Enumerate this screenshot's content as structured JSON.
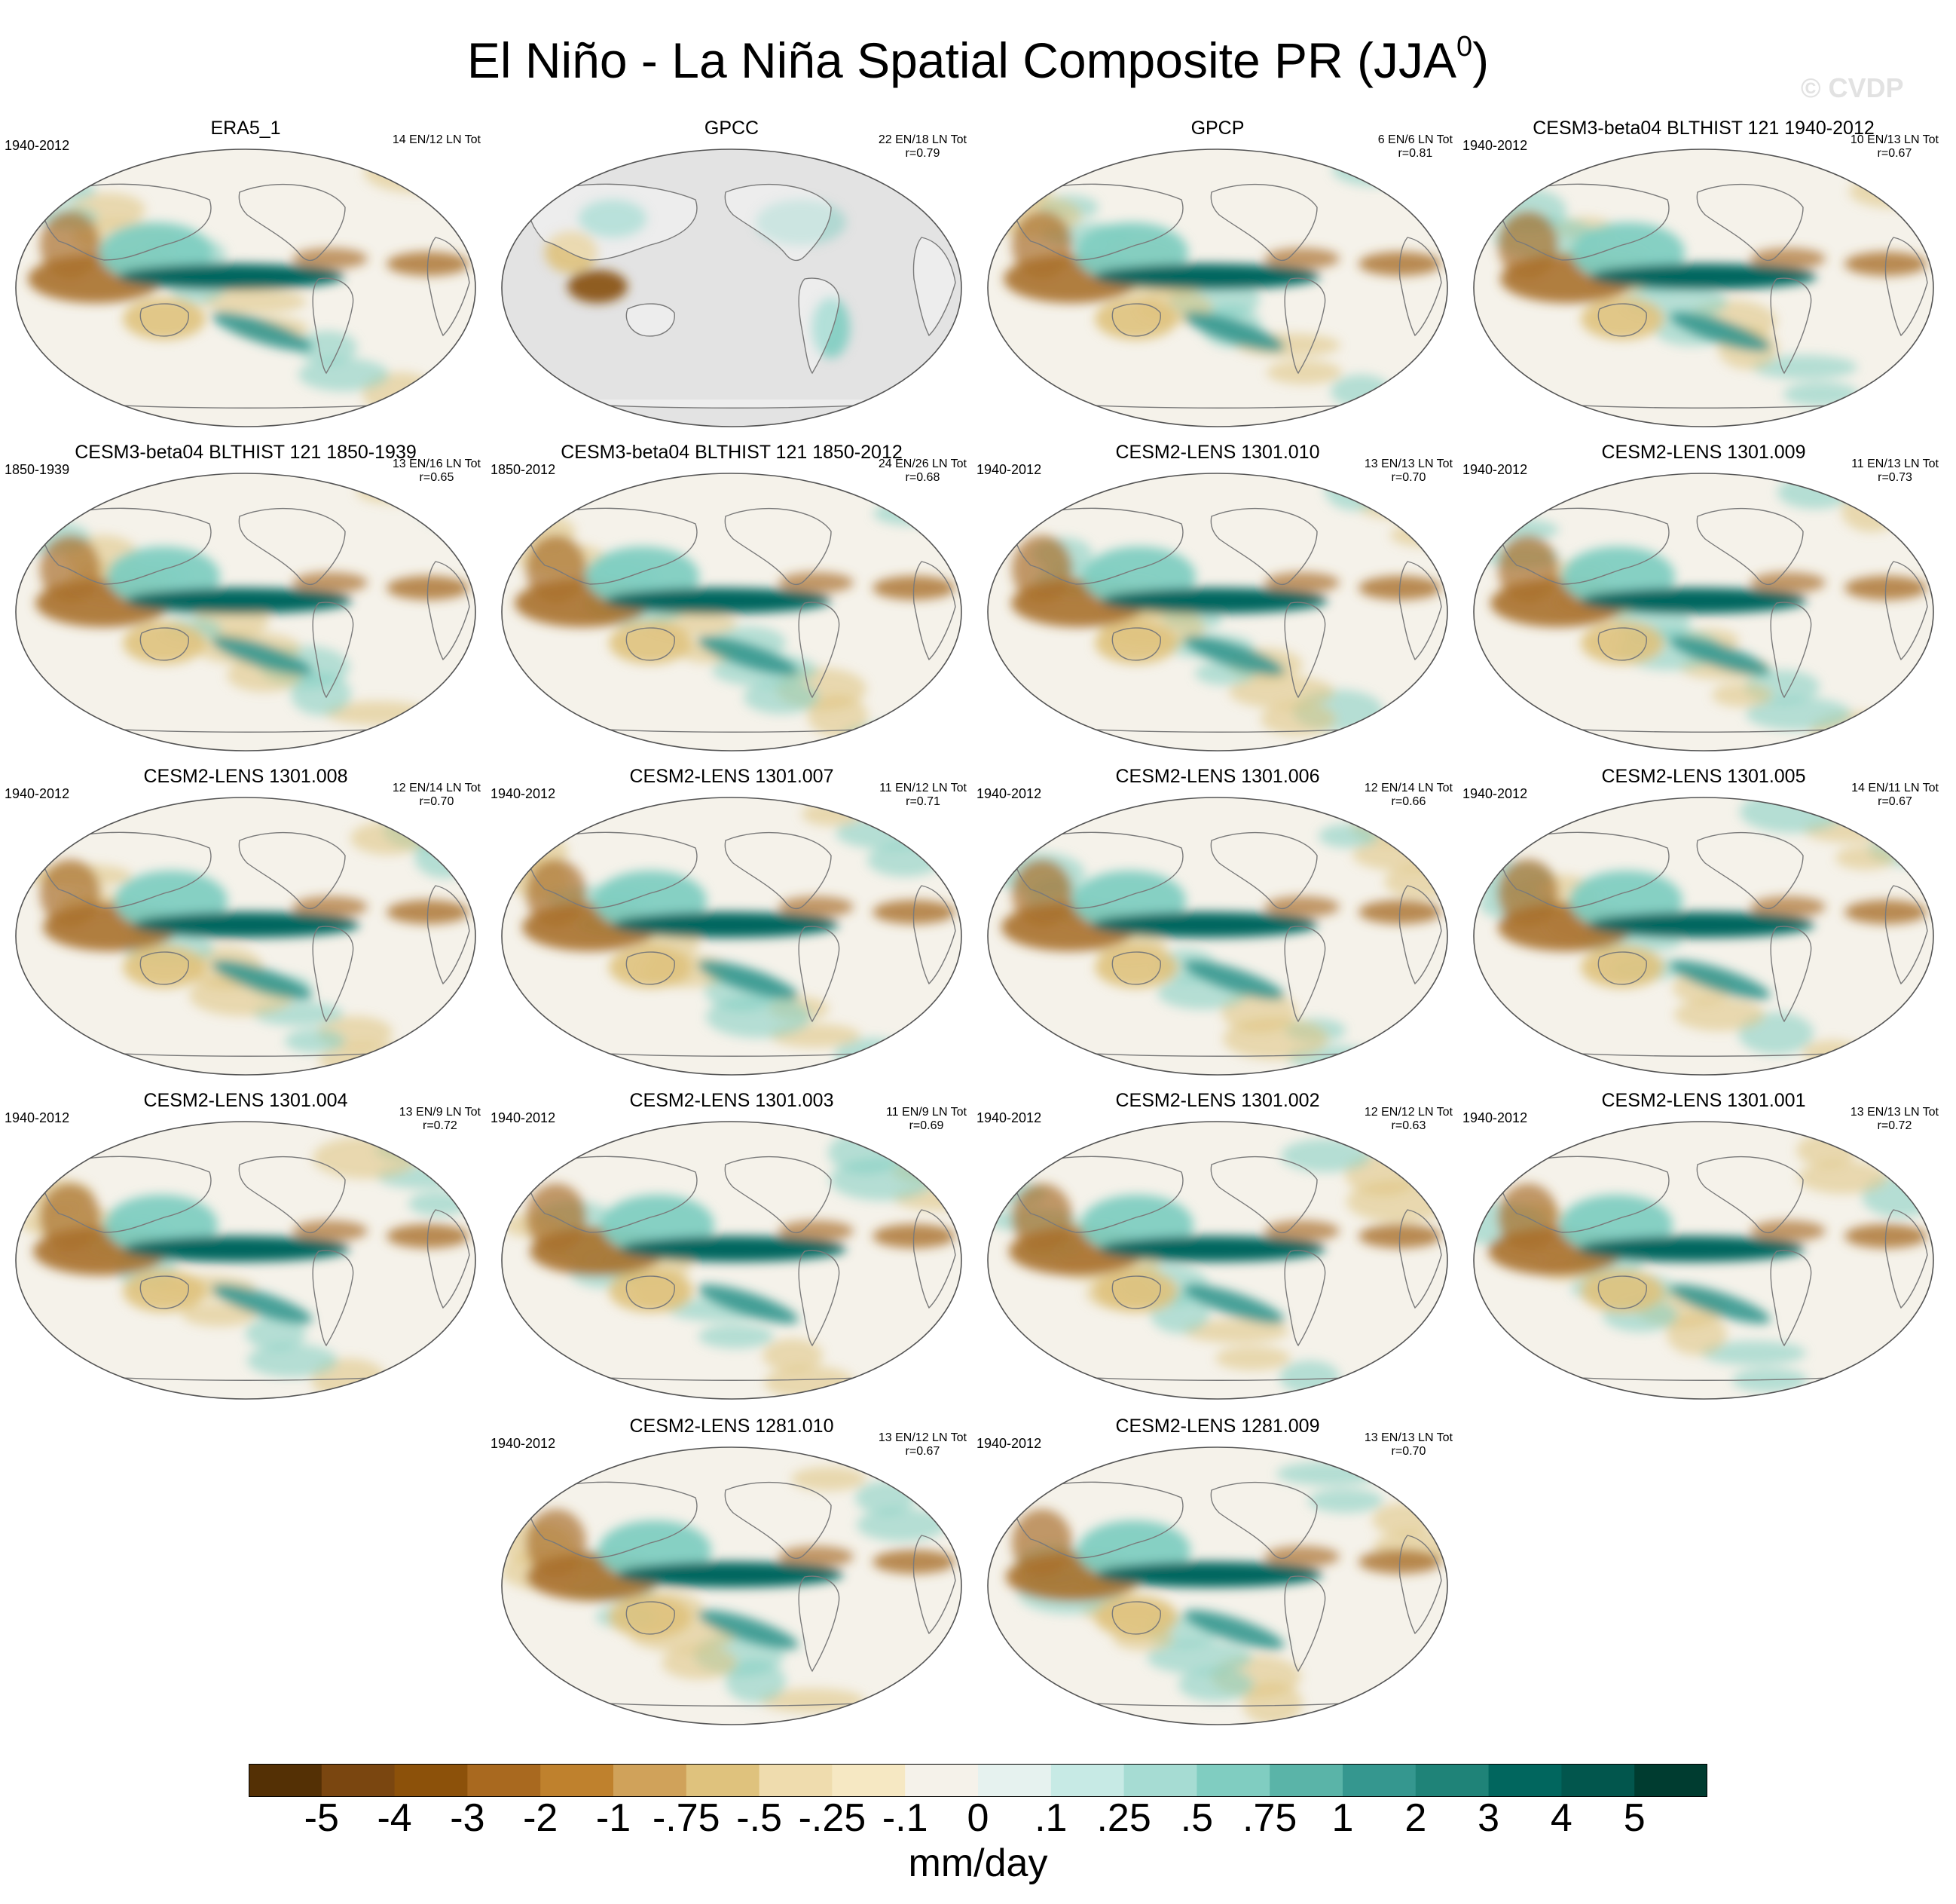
{
  "figure": {
    "title_main": "El Niño - La Niña Spatial Composite PR (JJA",
    "title_sup": "0",
    "title_close": ")",
    "watermark": "© CVDP"
  },
  "panels": [
    {
      "title": "ERA5_1",
      "years": "1940-2012",
      "stats": "14 EN/12 LN Tot",
      "r": "",
      "land_only": false,
      "dry_color": "#a9712c"
    },
    {
      "title": "GPCC",
      "years": "",
      "stats": "22 EN/18 LN Tot",
      "r": "r=0.79",
      "land_only": true,
      "dry_color": "#8a5419"
    },
    {
      "title": "GPCP",
      "years": "",
      "stats": "6 EN/6 LN Tot",
      "r": "r=0.81",
      "land_only": false,
      "dry_color": "#a9712c"
    },
    {
      "title": "CESM3-beta04 BLTHIST 121 1940-2012",
      "years": "1940-2012",
      "stats": "10 EN/13 LN Tot",
      "r": "r=0.67",
      "land_only": false,
      "dry_color": "#a9712c"
    },
    {
      "title": "CESM3-beta04 BLTHIST 121 1850-1939",
      "years": "1850-1939",
      "stats": "13 EN/16 LN Tot",
      "r": "r=0.65",
      "land_only": false,
      "dry_color": "#a9712c"
    },
    {
      "title": "CESM3-beta04 BLTHIST 121 1850-2012",
      "years": "1850-2012",
      "stats": "24 EN/26 LN Tot",
      "r": "r=0.68",
      "land_only": false,
      "dry_color": "#a9712c"
    },
    {
      "title": "CESM2-LENS 1301.010",
      "years": "1940-2012",
      "stats": "13 EN/13 LN Tot",
      "r": "r=0.70",
      "land_only": false,
      "dry_color": "#a9712c"
    },
    {
      "title": "CESM2-LENS 1301.009",
      "years": "1940-2012",
      "stats": "11 EN/13 LN Tot",
      "r": "r=0.73",
      "land_only": false,
      "dry_color": "#a9712c"
    },
    {
      "title": "CESM2-LENS 1301.008",
      "years": "1940-2012",
      "stats": "12 EN/14 LN Tot",
      "r": "r=0.70",
      "land_only": false,
      "dry_color": "#a9712c"
    },
    {
      "title": "CESM2-LENS 1301.007",
      "years": "1940-2012",
      "stats": "11 EN/12 LN Tot",
      "r": "r=0.71",
      "land_only": false,
      "dry_color": "#a9712c"
    },
    {
      "title": "CESM2-LENS 1301.006",
      "years": "1940-2012",
      "stats": "12 EN/14 LN Tot",
      "r": "r=0.66",
      "land_only": false,
      "dry_color": "#a9712c"
    },
    {
      "title": "CESM2-LENS 1301.005",
      "years": "1940-2012",
      "stats": "14 EN/11 LN Tot",
      "r": "r=0.67",
      "land_only": false,
      "dry_color": "#a9712c"
    },
    {
      "title": "CESM2-LENS 1301.004",
      "years": "1940-2012",
      "stats": "13 EN/9 LN Tot",
      "r": "r=0.72",
      "land_only": false,
      "dry_color": "#a9712c"
    },
    {
      "title": "CESM2-LENS 1301.003",
      "years": "1940-2012",
      "stats": "11 EN/9 LN Tot",
      "r": "r=0.69",
      "land_only": false,
      "dry_color": "#a9712c"
    },
    {
      "title": "CESM2-LENS 1301.002",
      "years": "1940-2012",
      "stats": "12 EN/12 LN Tot",
      "r": "r=0.63",
      "land_only": false,
      "dry_color": "#a9712c"
    },
    {
      "title": "CESM2-LENS 1301.001",
      "years": "1940-2012",
      "stats": "13 EN/13 LN Tot",
      "r": "r=0.72",
      "land_only": false,
      "dry_color": "#a9712c"
    },
    {
      "title": "CESM2-LENS 1281.010",
      "years": "1940-2012",
      "stats": "13 EN/12 LN Tot",
      "r": "r=0.67",
      "land_only": false,
      "dry_color": "#a9712c"
    },
    {
      "title": "CESM2-LENS 1281.009",
      "years": "1940-2012",
      "stats": "13 EN/13 LN Tot",
      "r": "r=0.70",
      "land_only": false,
      "dry_color": "#a9712c"
    }
  ],
  "colorbar": {
    "labels": [
      "-5",
      "-4",
      "-3",
      "-2",
      "-1",
      "-.75",
      "-.5",
      "-.25",
      "-.1",
      "0",
      ".1",
      ".25",
      ".5",
      ".75",
      "1",
      "2",
      "3",
      "4",
      "5"
    ],
    "colors": [
      "#543005",
      "#7a4610",
      "#8c510a",
      "#a9691f",
      "#bf812d",
      "#d0a25a",
      "#dfc27d",
      "#efdcae",
      "#f6e8c3",
      "#f5f2ea",
      "#e6f2ef",
      "#c7eae5",
      "#a6dcd3",
      "#80cdc1",
      "#5ab4a8",
      "#35978f",
      "#1f8378",
      "#01665e",
      "#02564d",
      "#003c30"
    ],
    "units": "mm/day"
  },
  "legend_colors": {
    "wet": "#01665e",
    "wet_light": "#80cdc1",
    "dry": "#a9712c",
    "dry_light": "#dfc27d",
    "neutral": "#f5f2ea",
    "land_mask": "#e3e3e3",
    "coast": "#7a7a7a"
  }
}
